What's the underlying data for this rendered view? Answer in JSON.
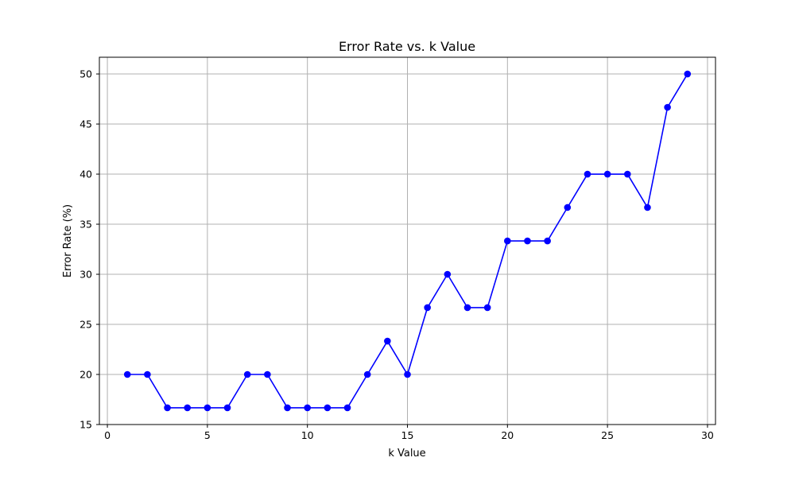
{
  "chart_data": {
    "type": "line",
    "title": "Error Rate vs. k Value",
    "xlabel": "k Value",
    "ylabel": "Error Rate (%)",
    "xlim": [
      -0.4,
      30.4
    ],
    "ylim": [
      15,
      51.67
    ],
    "xticks": [
      0,
      5,
      10,
      15,
      20,
      25,
      30
    ],
    "yticks": [
      15,
      20,
      25,
      30,
      35,
      40,
      45,
      50
    ],
    "grid": true,
    "series": [
      {
        "x": [
          1,
          2,
          3,
          4,
          5,
          6,
          7,
          8,
          9,
          10,
          11,
          12,
          13,
          14,
          15,
          16,
          17,
          18,
          19,
          20,
          21,
          22,
          23,
          24,
          25,
          26,
          27,
          28,
          29
        ],
        "values": [
          20,
          20,
          16.67,
          16.67,
          16.67,
          16.67,
          20,
          20,
          16.67,
          16.67,
          16.67,
          16.67,
          20,
          23.33,
          20,
          26.67,
          30,
          26.67,
          26.67,
          33.33,
          33.33,
          33.33,
          36.67,
          40,
          40,
          40,
          36.67,
          46.67,
          50
        ]
      }
    ],
    "colors": {
      "line": "#0000ff",
      "marker": "#0000ff",
      "grid": "#b0b0b0",
      "axes": "#000000"
    }
  }
}
